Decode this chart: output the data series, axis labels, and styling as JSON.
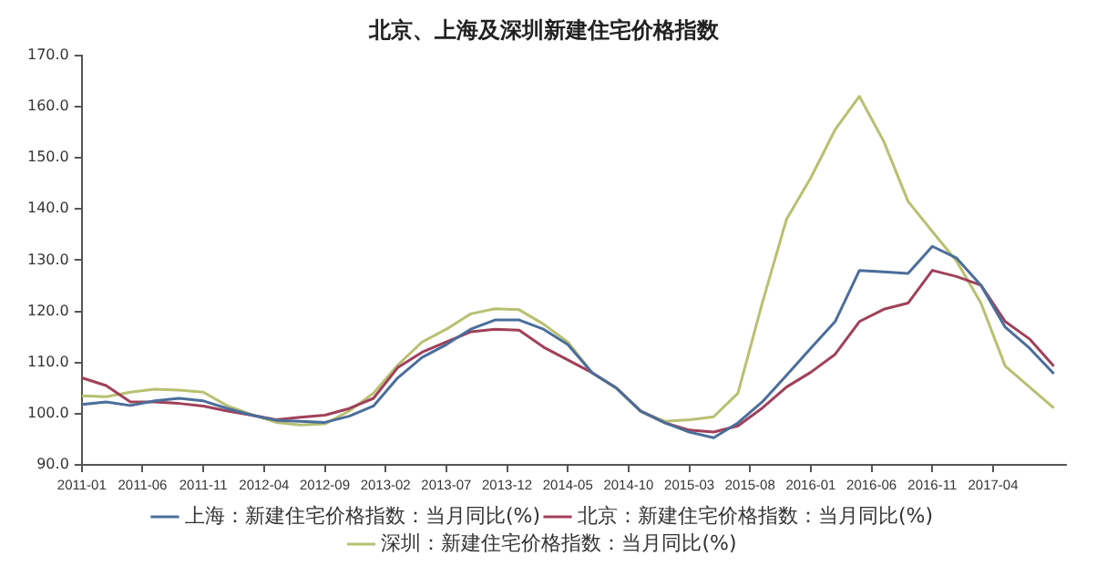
{
  "chart_data": {
    "type": "line",
    "title": "北京、上海及深圳新建住宅价格指数",
    "x": [
      "2011-01",
      "2011-03",
      "2011-05",
      "2011-07",
      "2011-09",
      "2011-11",
      "2012-01",
      "2012-03",
      "2012-05",
      "2012-07",
      "2012-09",
      "2012-11",
      "2013-01",
      "2013-03",
      "2013-05",
      "2013-07",
      "2013-09",
      "2013-11",
      "2014-01",
      "2014-03",
      "2014-05",
      "2014-07",
      "2014-09",
      "2014-11",
      "2015-01",
      "2015-03",
      "2015-05",
      "2015-07",
      "2015-09",
      "2015-11",
      "2016-01",
      "2016-03",
      "2016-05",
      "2016-07",
      "2016-09",
      "2016-11",
      "2017-01",
      "2017-03",
      "2017-05",
      "2017-07",
      "2017-09"
    ],
    "series": [
      {
        "name": "上海：新建住宅价格指数：当月同比(%)",
        "color": "#4a6e9a",
        "values": [
          101.8,
          102.3,
          101.6,
          102.5,
          103,
          102.5,
          101,
          99.7,
          98.7,
          98.5,
          98.3,
          99.5,
          101.5,
          107,
          111,
          113.5,
          116.5,
          118.3,
          118.3,
          116.5,
          113.5,
          108,
          105,
          100.5,
          98.2,
          96.4,
          95.3,
          98.2,
          102.3,
          107.5,
          112.8,
          118,
          128,
          127.7,
          127.4,
          132.7,
          130.4,
          125.1,
          116.9,
          112.8,
          107.8
        ]
      },
      {
        "name": "北京：新建住宅价格指数：当月同比(%)",
        "color": "#a0405a",
        "values": [
          107,
          105.5,
          102.3,
          102.3,
          102,
          101.5,
          100.5,
          99.7,
          98.8,
          99.3,
          99.7,
          101,
          103,
          109,
          112,
          114,
          116,
          116.5,
          116.3,
          113,
          110.5,
          108,
          105,
          100.5,
          98.2,
          96.8,
          96.4,
          97.6,
          101.1,
          105.2,
          108.1,
          111.6,
          118,
          120.4,
          121.6,
          128,
          126.8,
          125.1,
          118,
          114.6,
          109.3
        ]
      },
      {
        "name": "深圳：新建住宅价格指数：当月同比(%)",
        "color": "#b8c070",
        "values": [
          103.5,
          103.3,
          104.2,
          104.8,
          104.6,
          104.2,
          101.5,
          99.8,
          98.3,
          97.8,
          98,
          100.5,
          104,
          109.5,
          114,
          116.5,
          119.5,
          120.5,
          120.3,
          117.5,
          114,
          108,
          105,
          100.5,
          98.5,
          98.8,
          99.4,
          104,
          121.6,
          138,
          146.1,
          155.5,
          162,
          153.2,
          141.5,
          135.6,
          129.8,
          121.6,
          109.3,
          105.2,
          101.1
        ]
      }
    ],
    "xlim": [
      "2011-01",
      "2017-10"
    ],
    "xticks": [
      "2011-01",
      "2011-06",
      "2011-11",
      "2012-04",
      "2012-09",
      "2013-02",
      "2013-07",
      "2013-12",
      "2014-05",
      "2014-10",
      "2015-03",
      "2015-08",
      "2016-01",
      "2016-06",
      "2016-11",
      "2017-04"
    ],
    "ylim": [
      90,
      170
    ],
    "yticks": [
      {
        "value": 90,
        "label": "90.0"
      },
      {
        "value": 100,
        "label": "100.0"
      },
      {
        "value": 110,
        "label": "110.0"
      },
      {
        "value": 120,
        "label": "120.0"
      },
      {
        "value": 130,
        "label": "130.0"
      },
      {
        "value": 140,
        "label": "140.0"
      },
      {
        "value": 150,
        "label": "150.0"
      },
      {
        "value": 160,
        "label": "160.0"
      },
      {
        "value": 170,
        "label": "170.0"
      }
    ],
    "grid": false,
    "legend": "bottom",
    "marker": "none",
    "line_style": "solid"
  }
}
